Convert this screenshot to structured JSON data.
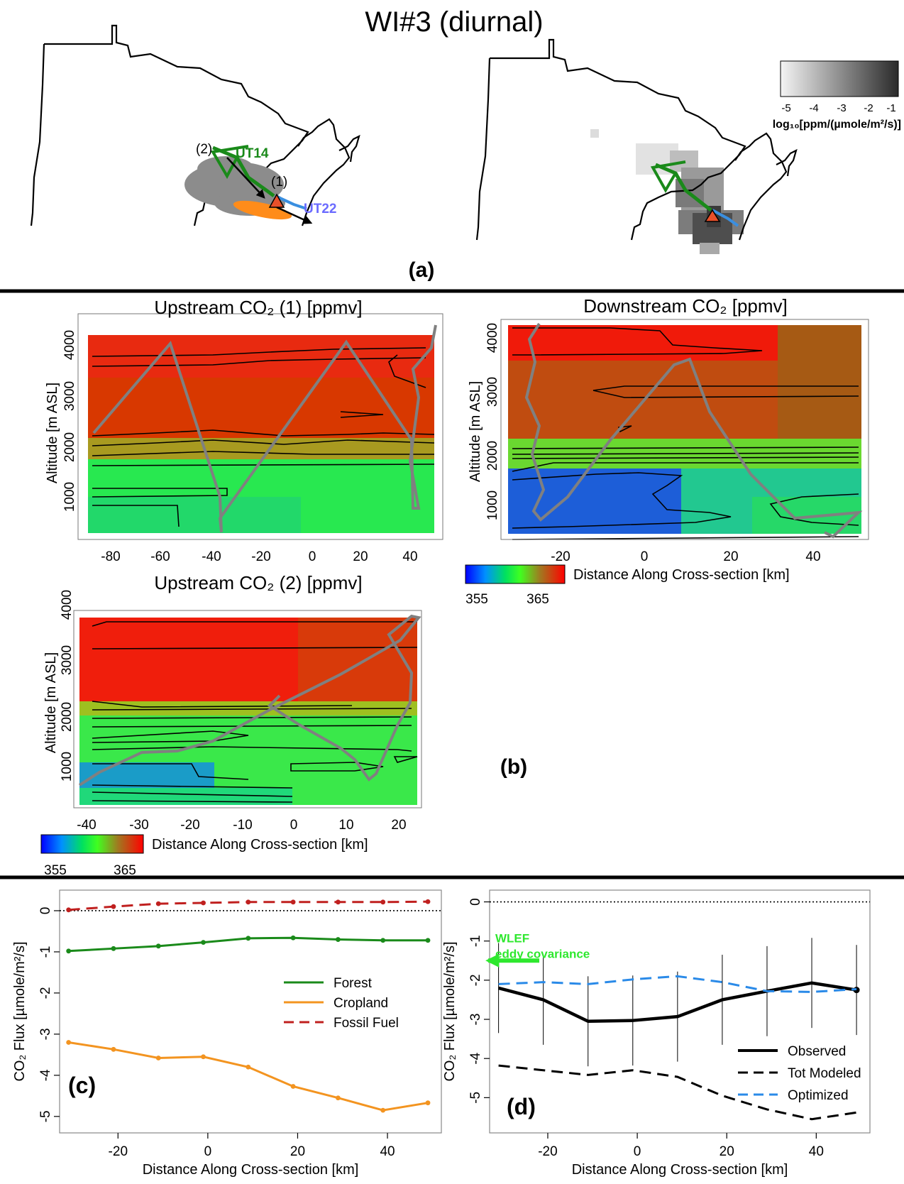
{
  "figure_title": "WI#3 (diurnal)",
  "panel_labels": {
    "a": "(a)",
    "b": "(b)",
    "c": "(c)",
    "d": "(d)"
  },
  "maps": {
    "left_labels": [
      "(2)",
      "UT14",
      "(1)",
      "UT22"
    ],
    "colorbar_ticks": [
      "-5",
      "-4",
      "-3",
      "-2",
      "-1"
    ],
    "colorbar_label": "log₁₀[ppm/(µmole/m²/s)]",
    "colors": {
      "green_track": "#1a8a1a",
      "blue_track": "#3a8fe0",
      "label_blue": "#6b6bff",
      "gray_particles": "#8c8c8c",
      "orange_particles": "#ff8c1a",
      "triangle": "#e8502a"
    }
  },
  "cross_sections": {
    "ylabel": "Altitude [m ASL]",
    "xlabel": "Distance Along Cross-section [km]",
    "colorscale_ticks": [
      "355",
      "365"
    ],
    "colors": {
      "low": "#0000ff",
      "mid": "#00ff00",
      "high": "#ff0000",
      "track": "#808080"
    },
    "panels": [
      {
        "title": "Upstream CO₂ (1) [ppmv]",
        "xlim": [
          -90,
          50
        ],
        "ylim": [
          500,
          4000
        ],
        "xticks": [
          "-80",
          "-60",
          "-40",
          "-20",
          "0",
          "20",
          "40"
        ],
        "yticks": [
          "1000",
          "2000",
          "3000",
          "4000"
        ]
      },
      {
        "title": "Downstream CO₂ [ppmv]",
        "xlim": [
          -33,
          52
        ],
        "ylim": [
          500,
          4000
        ],
        "xticks": [
          "-20",
          "0",
          "20",
          "40"
        ],
        "yticks": [
          "1000",
          "2000",
          "3000",
          "4000"
        ]
      },
      {
        "title": "Upstream CO₂ (2) [ppmv]",
        "xlim": [
          -42,
          28
        ],
        "ylim": [
          500,
          4000
        ],
        "xticks": [
          "-40",
          "-30",
          "-20",
          "-10",
          "0",
          "10",
          "20"
        ],
        "yticks": [
          "1000",
          "2000",
          "3000",
          "4000"
        ]
      }
    ]
  },
  "chart_data": [
    {
      "type": "line",
      "panel": "(c)",
      "xlabel": "Distance Along Cross-section [km]",
      "ylabel": "CO₂ Flux [µmole/m²/s]",
      "xlim": [
        -33,
        52
      ],
      "ylim": [
        -5.4,
        0.5
      ],
      "xticks": [
        -20,
        0,
        20,
        40
      ],
      "yticks": [
        0,
        -1,
        -2,
        -3,
        -4,
        -5
      ],
      "x": [
        -31,
        -21,
        -11,
        -1,
        9,
        19,
        29,
        39,
        49
      ],
      "reference_line": 0,
      "legend_position": "middle-right",
      "series": [
        {
          "name": "Forest",
          "color": "#1a8a1a",
          "style": "solid",
          "values": [
            -0.98,
            -0.92,
            -0.86,
            -0.77,
            -0.67,
            -0.66,
            -0.7,
            -0.72,
            -0.72
          ]
        },
        {
          "name": "Cropland",
          "color": "#f39420",
          "style": "solid",
          "values": [
            -3.2,
            -3.37,
            -3.58,
            -3.55,
            -3.8,
            -4.27,
            -4.55,
            -4.85,
            -4.67
          ]
        },
        {
          "name": "Fossil Fuel",
          "color": "#c0201f",
          "style": "dashed",
          "values": [
            0.02,
            0.1,
            0.17,
            0.19,
            0.21,
            0.21,
            0.21,
            0.21,
            0.22
          ]
        }
      ]
    },
    {
      "type": "line",
      "panel": "(d)",
      "xlabel": "Distance Along Cross-section [km]",
      "ylabel": "CO₂ Flux [µmole/m²/s]",
      "xlim": [
        -33,
        52
      ],
      "ylim": [
        -5.9,
        0.3
      ],
      "xticks": [
        -20,
        0,
        20,
        40
      ],
      "yticks": [
        0,
        -1,
        -2,
        -3,
        -4,
        -5
      ],
      "x": [
        -31,
        -21,
        -11,
        -1,
        9,
        19,
        29,
        39,
        49
      ],
      "reference_line": 0,
      "legend_position": "bottom-right",
      "annotation": {
        "text_lines": [
          "WLEF",
          "eddy covariance"
        ],
        "value": -1.5,
        "color": "#2ee82e"
      },
      "series": [
        {
          "name": "Observed",
          "color": "#000000",
          "style": "solid",
          "values": [
            -2.2,
            -2.5,
            -3.05,
            -3.03,
            -2.93,
            -2.5,
            -2.28,
            -2.07,
            -2.25
          ],
          "error": [
            1.15,
            1.15,
            1.15,
            1.15,
            1.15,
            1.15,
            1.15,
            1.15,
            1.15
          ]
        },
        {
          "name": "Tot Modeled",
          "color": "#000000",
          "style": "dashed",
          "values": [
            -4.18,
            -4.3,
            -4.42,
            -4.3,
            -4.47,
            -4.95,
            -5.3,
            -5.55,
            -5.38
          ]
        },
        {
          "name": "Optimized",
          "color": "#2a8ae8",
          "style": "dashed",
          "values": [
            -2.1,
            -2.05,
            -2.1,
            -1.98,
            -1.9,
            -2.05,
            -2.28,
            -2.3,
            -2.23
          ]
        }
      ]
    }
  ]
}
